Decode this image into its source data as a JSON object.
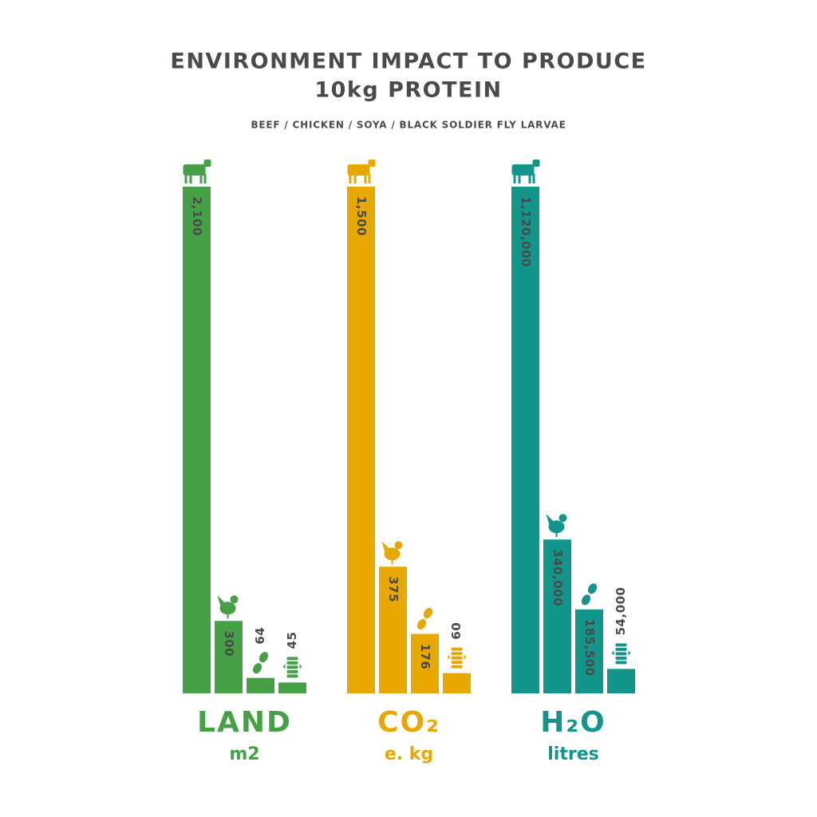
{
  "title_lines": [
    "ENVIRONMENT IMPACT TO PRODUCE",
    "10kg PROTEIN"
  ],
  "subtitle": "BEEF / CHICKEN / SOYA / BLACK SOLDIER FLY LARVAE",
  "chart_data": [
    {
      "type": "bar",
      "title": "LAND",
      "unit": "m2",
      "color": "#46a046",
      "values": [
        2100,
        300,
        64,
        45
      ],
      "value_labels": [
        "2,100",
        "300",
        "64",
        "45"
      ],
      "ylim": [
        0,
        2100
      ]
    },
    {
      "type": "bar",
      "title": "CO₂",
      "unit": "e. kg",
      "color": "#e9a800",
      "values": [
        1500,
        375,
        176,
        60
      ],
      "value_labels": [
        "1,500",
        "375",
        "176",
        "60"
      ],
      "ylim": [
        0,
        1500
      ]
    },
    {
      "type": "bar",
      "title": "H₂O",
      "unit": "litres",
      "color": "#12958a",
      "values": [
        1120000,
        340000,
        185500,
        54000
      ],
      "value_labels": [
        "1,120,000",
        "340,000",
        "185,500",
        "54,000"
      ],
      "ylim": [
        0,
        1120000
      ]
    }
  ]
}
